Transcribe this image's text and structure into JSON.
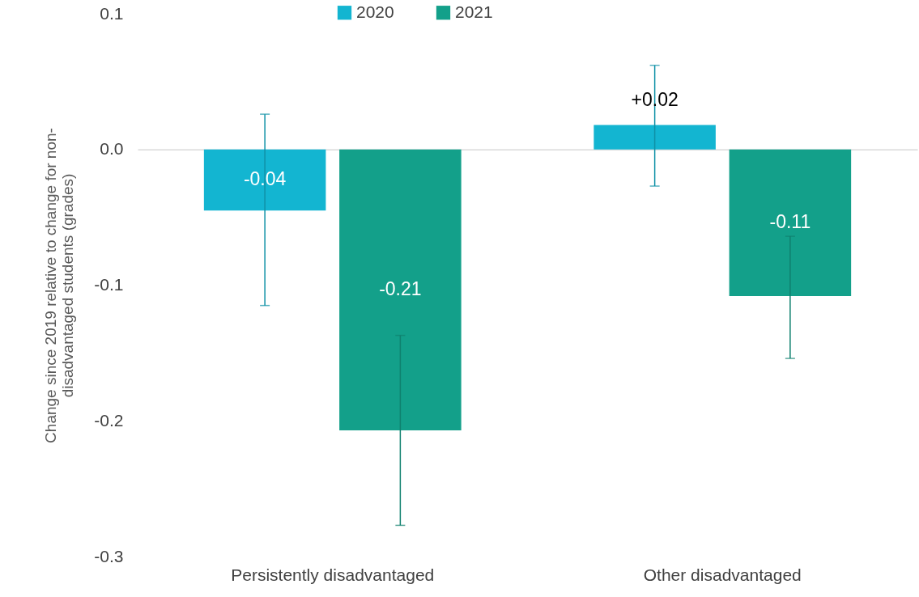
{
  "chart_data": {
    "type": "bar",
    "ylabel": "Change since 2019 relative to change for non-disadvantaged students (grades)",
    "categories": [
      "Persistently disadvantaged",
      "Other disadvantaged"
    ],
    "series": [
      {
        "name": "2020",
        "color": "#13b5d1",
        "values": [
          -0.045,
          0.018
        ],
        "errors": [
          [
            -0.115,
            0.026
          ],
          [
            -0.027,
            0.062
          ]
        ],
        "value_labels": [
          "-0.04",
          "+0.02"
        ]
      },
      {
        "name": "2021",
        "color": "#13a08a",
        "values": [
          -0.207,
          -0.108
        ],
        "errors": [
          [
            -0.277,
            -0.137
          ],
          [
            -0.154,
            -0.064
          ]
        ],
        "value_labels": [
          "-0.21",
          "-0.11"
        ]
      }
    ],
    "ylim": [
      -0.3,
      0.1
    ],
    "yticks": [
      -0.3,
      -0.2,
      -0.1,
      {
        "value": 0,
        "label": "0.0"
      },
      0.1
    ],
    "legend": "top"
  }
}
